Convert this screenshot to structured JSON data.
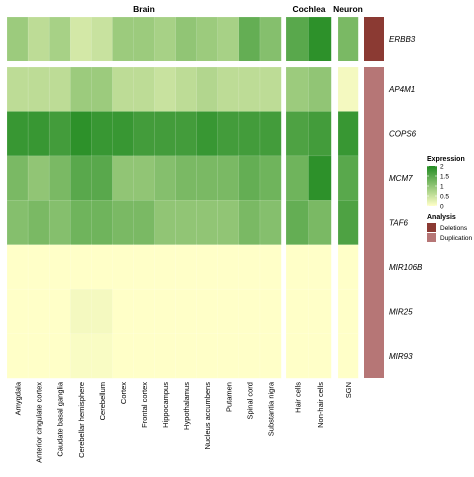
{
  "chart_data": {
    "type": "heatmap",
    "panels": [
      {
        "name": "Brain",
        "columns": [
          "Amygdala",
          "Anterior cingulate cortex",
          "Caudate basal ganglia",
          "Cerebellar hemisphere",
          "Cerebellum",
          "Cortex",
          "Frontal cortex",
          "Hippocampus",
          "Hypothalamus",
          "Nucleus accumbens",
          "Putamen",
          "Spinal cord",
          "Substantia nigra"
        ]
      },
      {
        "name": "Cochlea",
        "columns": [
          "Hair cells",
          "Non-hair cells"
        ]
      },
      {
        "name": "Neuron",
        "columns": [
          "SGN"
        ]
      }
    ],
    "row_groups": [
      {
        "rows": [
          "ERBB3"
        ]
      },
      {
        "rows": [
          "AP4M1",
          "COPS6",
          "MCM7",
          "TAF6",
          "MIR106B",
          "MIR25",
          "MIR93"
        ]
      }
    ],
    "values": {
      "ERBB3": [
        0.9,
        0.6,
        0.8,
        0.4,
        0.5,
        0.9,
        0.9,
        0.8,
        1.0,
        0.9,
        0.8,
        1.4,
        1.1,
        1.5,
        1.9,
        1.2
      ],
      "AP4M1": [
        0.6,
        0.6,
        0.6,
        0.9,
        0.9,
        0.6,
        0.6,
        0.5,
        0.6,
        0.7,
        0.6,
        0.6,
        0.6,
        0.9,
        1.0,
        0.1
      ],
      "COPS6": [
        1.8,
        1.8,
        1.7,
        1.9,
        1.8,
        1.8,
        1.7,
        1.7,
        1.7,
        1.8,
        1.7,
        1.7,
        1.7,
        1.6,
        1.7,
        1.8
      ],
      "MCM7": [
        1.2,
        1.0,
        1.2,
        1.5,
        1.5,
        1.0,
        1.0,
        1.1,
        1.2,
        1.2,
        1.2,
        1.4,
        1.3,
        1.3,
        1.9,
        1.5
      ],
      "TAF6": [
        1.1,
        1.2,
        1.1,
        1.3,
        1.3,
        1.2,
        1.2,
        1.0,
        1.0,
        1.0,
        1.0,
        1.2,
        1.1,
        1.4,
        1.2,
        1.6
      ],
      "MIR106B": [
        0,
        0,
        0,
        0,
        0,
        0,
        0,
        0,
        0,
        0,
        0,
        0,
        0,
        0,
        0,
        0
      ],
      "MIR25": [
        0,
        0,
        0,
        0.1,
        0.1,
        0,
        0,
        0,
        0,
        0,
        0,
        0,
        0,
        0,
        0,
        0
      ],
      "MIR93": [
        0,
        0,
        0,
        0.05,
        0.05,
        0,
        0,
        0,
        0,
        0,
        0,
        0,
        0,
        0,
        0,
        0
      ]
    },
    "analysis": {
      "ERBB3": "Deletions",
      "AP4M1": "Duplication",
      "COPS6": "Duplication",
      "MCM7": "Duplication",
      "TAF6": "Duplication",
      "MIR106B": "Duplication",
      "MIR25": "Duplication",
      "MIR93": "Duplication"
    },
    "scale": {
      "min": 0,
      "max": 2,
      "low_color": "#ffffc8",
      "high_color": "#228b22"
    },
    "legend": {
      "expression_title": "Expression",
      "ticks": [
        "2",
        "1.5",
        "1",
        "0.5",
        "0"
      ],
      "analysis_title": "Analysis",
      "analysis_items": [
        {
          "label": "Deletions",
          "color": "#8b3a33"
        },
        {
          "label": "Duplication",
          "color": "#b67676"
        }
      ]
    }
  }
}
